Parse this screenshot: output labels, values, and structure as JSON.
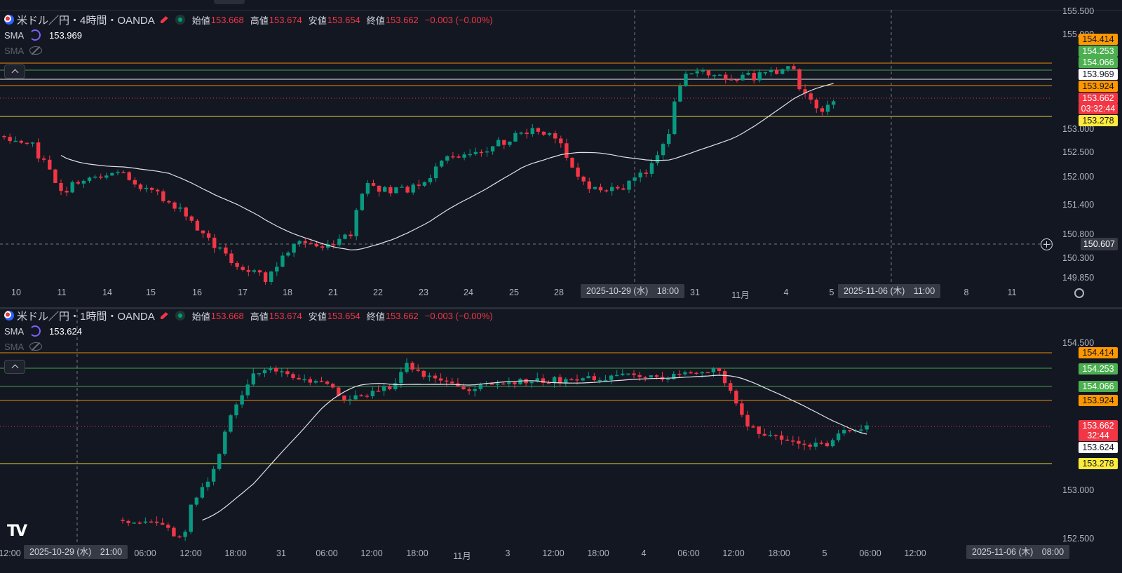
{
  "symbol": "米ドル／円",
  "broker": "OANDA",
  "ohlc_labels": {
    "open": "始値",
    "high": "高値",
    "low": "安値",
    "close": "終値"
  },
  "panes": [
    {
      "id": "4h",
      "timeframe": "4時間",
      "ohlc": {
        "open": "153.668",
        "high": "153.674",
        "low": "153.654",
        "close": "153.662"
      },
      "change": "−0.003 (−0.00%)",
      "sma1": {
        "label": "SMA",
        "value": "153.969"
      },
      "sma2": {
        "label": "SMA"
      },
      "y_axis": [
        "155.500",
        "155.000",
        "153.000",
        "152.500",
        "152.000",
        "151.400",
        "150.800",
        "150.300",
        "149.850"
      ],
      "price_labels": [
        {
          "value": "154.414",
          "color": "orange"
        },
        {
          "value": "154.253",
          "color": "green"
        },
        {
          "value": "154.066",
          "color": "green"
        },
        {
          "value": "153.969",
          "color": "white"
        },
        {
          "value": "153.924",
          "color": "orange"
        },
        {
          "value": "153.662",
          "color": "red"
        },
        {
          "value": "03:32:44",
          "color": "red"
        },
        {
          "value": "153.278",
          "color": "yellow"
        }
      ],
      "crosshair_price": "150.607",
      "x_axis": [
        "10",
        "11",
        "14",
        "15",
        "16",
        "17",
        "18",
        "21",
        "22",
        "23",
        "24",
        "25",
        "28",
        "31",
        "11月",
        "4",
        "5",
        "8",
        "11"
      ],
      "crosshair_time_1": "2025-10-29 (水)　18:00",
      "crosshair_time_2": "2025-11-06 (木)　11:00"
    },
    {
      "id": "1h",
      "timeframe": "1時間",
      "ohlc": {
        "open": "153.668",
        "high": "153.674",
        "low": "153.654",
        "close": "153.662"
      },
      "change": "−0.003 (−0.00%)",
      "sma1": {
        "label": "SMA",
        "value": "153.624"
      },
      "sma2": {
        "label": "SMA"
      },
      "y_axis": [
        "154.500",
        "153.000",
        "152.500"
      ],
      "price_labels": [
        {
          "value": "154.414",
          "color": "orange"
        },
        {
          "value": "154.253",
          "color": "green"
        },
        {
          "value": "154.066",
          "color": "green"
        },
        {
          "value": "153.924",
          "color": "orange"
        },
        {
          "value": "153.662",
          "color": "red"
        },
        {
          "value": "32:44",
          "color": "red"
        },
        {
          "value": "153.624",
          "color": "white"
        },
        {
          "value": "153.278",
          "color": "yellow"
        }
      ],
      "x_axis": [
        "12:00",
        "06:00",
        "12:00",
        "18:00",
        "31",
        "06:00",
        "12:00",
        "18:00",
        "11月",
        "3",
        "12:00",
        "18:00",
        "4",
        "06:00",
        "12:00",
        "18:00",
        "5",
        "06:00",
        "12:00"
      ],
      "crosshair_time_1": "2025-10-29 (水)　21:00",
      "crosshair_time_2": "2025-11-06 (木)　08:00"
    }
  ],
  "colors": {
    "up": "#089981",
    "down": "#f23645",
    "bg": "#131722",
    "line_orange": "#ff9800",
    "line_green": "#4caf50",
    "line_yellow": "#ffeb3b",
    "sma": "#e0e3eb"
  },
  "icons": [
    "us-flag-icon",
    "pencil-icon",
    "live-dot-icon",
    "sma-cycle-icon",
    "eye-off-icon",
    "chevron-up-icon",
    "plus-circle-icon",
    "gear-icon",
    "tradingview-logo"
  ]
}
